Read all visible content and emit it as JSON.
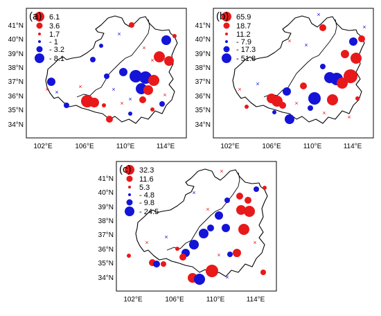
{
  "colors": {
    "positive": "#e8191a",
    "negative": "#1414d8"
  },
  "panels": [
    {
      "label": "(a)",
      "legend": [
        "6.1",
        "3.6",
        "1.7",
        "- 1",
        "- 3.2",
        "- 8.1"
      ],
      "lat_labels": [
        "41°N",
        "40°N",
        "39°N",
        "38°N",
        "37°N",
        "36°N",
        "35°N",
        "34°N"
      ],
      "lon_labels": [
        "102°E",
        "106°E",
        "110°E",
        "114°E"
      ]
    },
    {
      "label": "(b)",
      "legend": [
        "65.9",
        "18.7",
        "11.2",
        "- 7.9",
        "- 17.3",
        "- 51.8"
      ],
      "lat_labels": [
        "41°N",
        "40°N",
        "39°N",
        "38°N",
        "37°N",
        "36°N",
        "35°N",
        "34°N"
      ],
      "lon_labels": [
        "102°E",
        "106°E",
        "110°E",
        "114°E"
      ]
    },
    {
      "label": "(c)",
      "legend": [
        "32.3",
        "11.6",
        "5.3",
        "- 4.8",
        "- 9.8",
        "- 24.5"
      ],
      "lat_labels": [
        "41°N",
        "40°N",
        "39°N",
        "38°N",
        "37°N",
        "36°N",
        "35°N",
        "34°N"
      ],
      "lon_labels": [
        "102°E",
        "106°E",
        "110°E",
        "114°E"
      ]
    }
  ]
}
